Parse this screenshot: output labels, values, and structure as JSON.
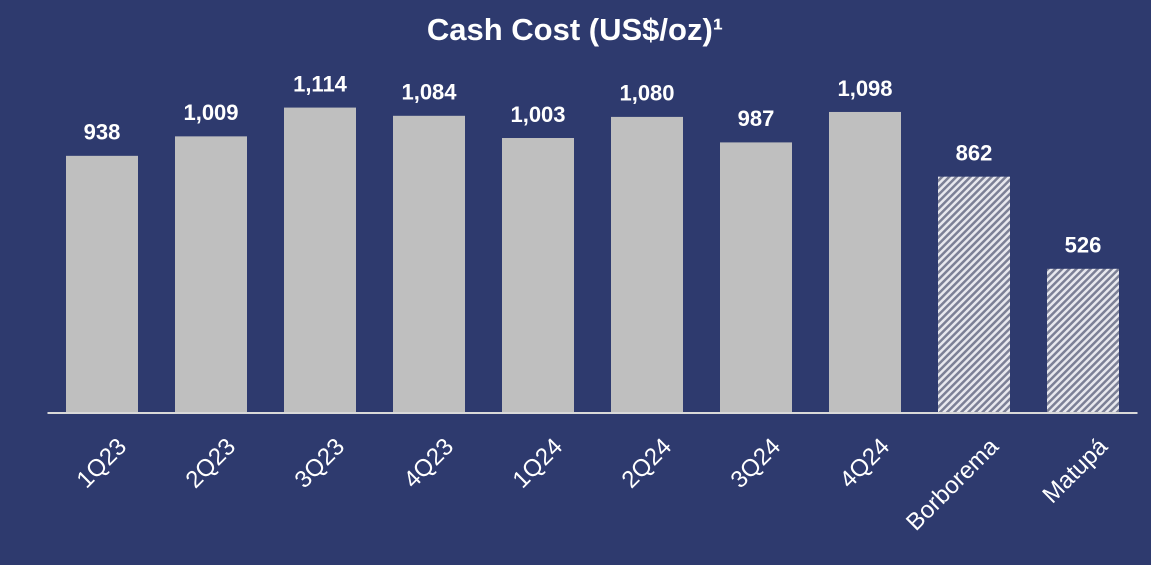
{
  "chart_data": {
    "type": "bar",
    "title": "Cash Cost (US$/oz)¹",
    "categories": [
      "1Q23",
      "2Q23",
      "3Q23",
      "4Q23",
      "1Q24",
      "2Q24",
      "3Q24",
      "4Q24",
      "Borborema",
      "Matupá"
    ],
    "values": [
      938,
      1009,
      1114,
      1084,
      1003,
      1080,
      987,
      1098,
      862,
      526
    ],
    "value_labels": [
      "938",
      "1,009",
      "1,114",
      "1,084",
      "1,003",
      "1,080",
      "987",
      "1,098",
      "862",
      "526"
    ],
    "hatched": [
      false,
      false,
      false,
      false,
      false,
      false,
      false,
      false,
      true,
      true
    ],
    "color": "#bfbfbf",
    "ylim": [
      0,
      1200
    ]
  }
}
